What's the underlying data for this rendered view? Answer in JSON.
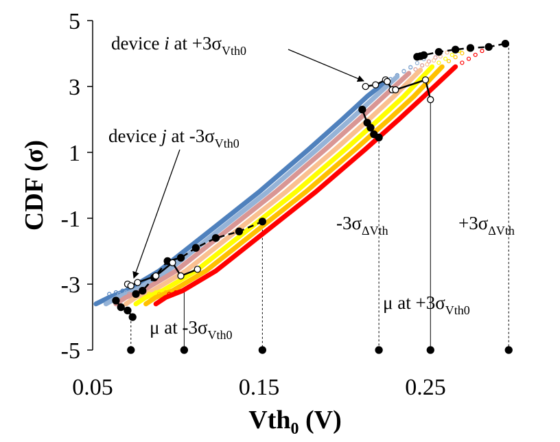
{
  "chart_data": {
    "type": "scatter",
    "xlabel_main": "Vth",
    "xlabel_sub": "0",
    "xlabel_unit": " (V)",
    "ylabel": "CDF (σ)",
    "xlim": [
      0.05,
      0.3
    ],
    "ylim": [
      -5,
      5
    ],
    "x_ticks": [
      0.05,
      0.15,
      0.25
    ],
    "x_tick_labels": [
      "0.05",
      "0.15",
      "0.25"
    ],
    "y_ticks": [
      5,
      3,
      1,
      -1,
      -3,
      -5
    ],
    "y_tick_labels": [
      "5",
      "3",
      "1",
      "-1",
      "-3",
      "-5"
    ],
    "grid": false,
    "series": [
      {
        "color": "#4f81bd",
        "x": [
          0.052,
          0.06,
          0.07,
          0.09,
          0.12,
          0.15,
          0.18,
          0.2,
          0.215,
          0.225
        ],
        "y": [
          -3.6,
          -3.4,
          -3.2,
          -2.6,
          -1.4,
          -0.2,
          1.1,
          2.0,
          2.7,
          3.1
        ]
      },
      {
        "color": "#95b3d7",
        "x": [
          0.058,
          0.065,
          0.075,
          0.095,
          0.125,
          0.155,
          0.185,
          0.205,
          0.22,
          0.233
        ],
        "y": [
          -3.6,
          -3.4,
          -3.2,
          -2.6,
          -1.4,
          -0.2,
          1.1,
          2.0,
          2.7,
          3.3
        ]
      },
      {
        "color": "#d99694",
        "x": [
          0.064,
          0.07,
          0.08,
          0.1,
          0.13,
          0.16,
          0.19,
          0.21,
          0.225,
          0.24
        ],
        "y": [
          -3.6,
          -3.4,
          -3.2,
          -2.6,
          -1.4,
          -0.2,
          1.1,
          2.0,
          2.7,
          3.4
        ]
      },
      {
        "color": "#fac090",
        "x": [
          0.07,
          0.076,
          0.086,
          0.106,
          0.136,
          0.166,
          0.196,
          0.216,
          0.231,
          0.247
        ],
        "y": [
          -3.6,
          -3.4,
          -3.2,
          -2.6,
          -1.4,
          -0.2,
          1.1,
          2.0,
          2.7,
          3.5
        ]
      },
      {
        "color": "#ffff00",
        "x": [
          0.076,
          0.082,
          0.092,
          0.112,
          0.142,
          0.172,
          0.202,
          0.222,
          0.237,
          0.254
        ],
        "y": [
          -3.6,
          -3.4,
          -3.2,
          -2.6,
          -1.4,
          -0.2,
          1.1,
          2.0,
          2.7,
          3.6
        ]
      },
      {
        "color": "#ffc000",
        "x": [
          0.082,
          0.088,
          0.098,
          0.118,
          0.148,
          0.178,
          0.208,
          0.228,
          0.243,
          0.26
        ],
        "y": [
          -3.6,
          -3.4,
          -3.2,
          -2.6,
          -1.4,
          -0.2,
          1.1,
          2.0,
          2.7,
          3.6
        ]
      },
      {
        "color": "#ff0000",
        "x": [
          0.088,
          0.094,
          0.104,
          0.124,
          0.154,
          0.184,
          0.214,
          0.234,
          0.249,
          0.268
        ],
        "y": [
          -3.6,
          -3.4,
          -3.2,
          -2.6,
          -1.4,
          -0.2,
          1.1,
          2.0,
          2.7,
          3.6
        ]
      }
    ],
    "dashed_upper": {
      "x": [
        0.245,
        0.247,
        0.249,
        0.258,
        0.268,
        0.277,
        0.288,
        0.298
      ],
      "y": [
        3.9,
        3.92,
        3.95,
        4.05,
        4.12,
        4.17,
        4.2,
        4.3
      ]
    },
    "dashed_lower": {
      "x": [
        0.076,
        0.08,
        0.087,
        0.095,
        0.103,
        0.112,
        0.124,
        0.138,
        0.152
      ],
      "y": [
        -3.3,
        -3.2,
        -2.8,
        -2.3,
        -2.2,
        -1.9,
        -1.6,
        -1.4,
        -1.1
      ]
    },
    "solid_upper_black": {
      "x": [
        0.212,
        0.215,
        0.217,
        0.219,
        0.222
      ],
      "y": [
        2.3,
        1.9,
        1.75,
        1.55,
        1.45
      ]
    },
    "solid_lower_black": {
      "x": [
        0.064,
        0.067,
        0.071,
        0.074
      ],
      "y": [
        -3.5,
        -3.7,
        -3.8,
        -4.0
      ]
    },
    "white_upper": {
      "x": [
        0.214,
        0.22,
        0.226,
        0.227,
        0.23,
        0.232,
        0.25,
        0.253
      ],
      "y": [
        3.0,
        3.05,
        3.2,
        3.15,
        2.9,
        2.9,
        3.2,
        2.6
      ]
    },
    "white_lower": {
      "x": [
        0.071,
        0.073,
        0.077,
        0.088,
        0.098,
        0.103,
        0.113
      ],
      "y": [
        -3.0,
        -3.05,
        -2.95,
        -2.75,
        -2.35,
        -2.75,
        -2.55
      ]
    },
    "bottom_markers": {
      "x": [
        0.073,
        0.105,
        0.152,
        0.222,
        0.253,
        0.3
      ],
      "y": [
        -5,
        -5,
        -5,
        -5,
        -5,
        -5
      ]
    },
    "guides": [
      {
        "x": 0.073,
        "y_top": -4.0,
        "style": "dashed"
      },
      {
        "x": 0.105,
        "y_top": -3.2,
        "style": "solid"
      },
      {
        "x": 0.152,
        "y_top": -1.1,
        "style": "dashed"
      },
      {
        "x": 0.222,
        "y_top": 1.45,
        "style": "dashed"
      },
      {
        "x": 0.253,
        "y_top": 2.6,
        "style": "solid"
      },
      {
        "x": 0.3,
        "y_top": 4.3,
        "style": "dashed"
      }
    ],
    "annotations": {
      "device_i": {
        "pre": "device ",
        "var": "i",
        "mid": " at +3σ",
        "sub": "Vth0"
      },
      "device_j": {
        "pre": "device ",
        "var": "j",
        "mid": " at -3σ",
        "sub": "Vth0"
      },
      "mu_minus": {
        "main": "μ at -3σ",
        "sub": "Vth0"
      },
      "mu_plus": {
        "main": "μ at +3σ",
        "sub": "Vth0"
      },
      "minus3_delta": {
        "main": "-3σ",
        "sub": "ΔVth"
      },
      "plus3_delta": {
        "main": "+3σ",
        "sub": "ΔVth"
      }
    }
  }
}
